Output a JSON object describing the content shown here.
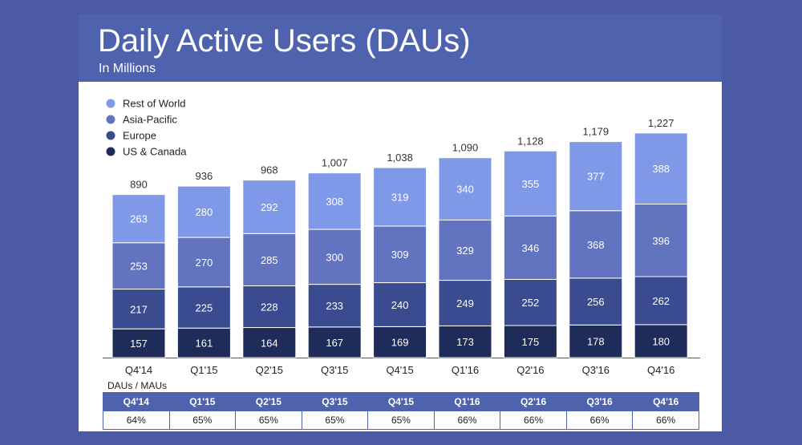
{
  "header": {
    "title": "Daily Active Users (DAUs)",
    "subtitle": "In Millions"
  },
  "colors": {
    "background": "#4c5aa3",
    "header": "#4e62ad",
    "us_canada": "#1f2b59",
    "europe": "#3a4c8f",
    "asia_pacific": "#6273c0",
    "rest_of_world": "#7f98e8"
  },
  "chart_data": {
    "type": "bar",
    "stacked": true,
    "title": "Daily Active Users (DAUs)",
    "subtitle": "In Millions",
    "categories": [
      "Q4'14",
      "Q1'15",
      "Q2'15",
      "Q3'15",
      "Q4'15",
      "Q1'16",
      "Q2'16",
      "Q3'16",
      "Q4'16"
    ],
    "series": [
      {
        "name": "US & Canada",
        "color": "#1f2b59",
        "values": [
          157,
          161,
          164,
          167,
          169,
          173,
          175,
          178,
          180
        ]
      },
      {
        "name": "Europe",
        "color": "#3a4c8f",
        "values": [
          217,
          225,
          228,
          233,
          240,
          249,
          252,
          256,
          262
        ]
      },
      {
        "name": "Asia-Pacific",
        "color": "#6273c0",
        "values": [
          253,
          270,
          285,
          300,
          309,
          329,
          346,
          368,
          396
        ]
      },
      {
        "name": "Rest of World",
        "color": "#7f98e8",
        "values": [
          263,
          280,
          292,
          308,
          319,
          340,
          355,
          377,
          388
        ]
      }
    ],
    "totals": [
      "890",
      "936",
      "968",
      "1,007",
      "1,038",
      "1,090",
      "1,128",
      "1,179",
      "1,227"
    ],
    "legend_order": [
      "Rest of World",
      "Asia-Pacific",
      "Europe",
      "US & Canada"
    ],
    "legend_position": "top-left",
    "ylim": [
      0,
      1300
    ],
    "grid": false
  },
  "ratio_table": {
    "label": "DAUs / MAUs",
    "headers": [
      "Q4'14",
      "Q1'15",
      "Q2'15",
      "Q3'15",
      "Q4'15",
      "Q1'16",
      "Q2'16",
      "Q3'16",
      "Q4'16"
    ],
    "values": [
      "64%",
      "65%",
      "65%",
      "65%",
      "65%",
      "66%",
      "66%",
      "66%",
      "66%"
    ]
  }
}
